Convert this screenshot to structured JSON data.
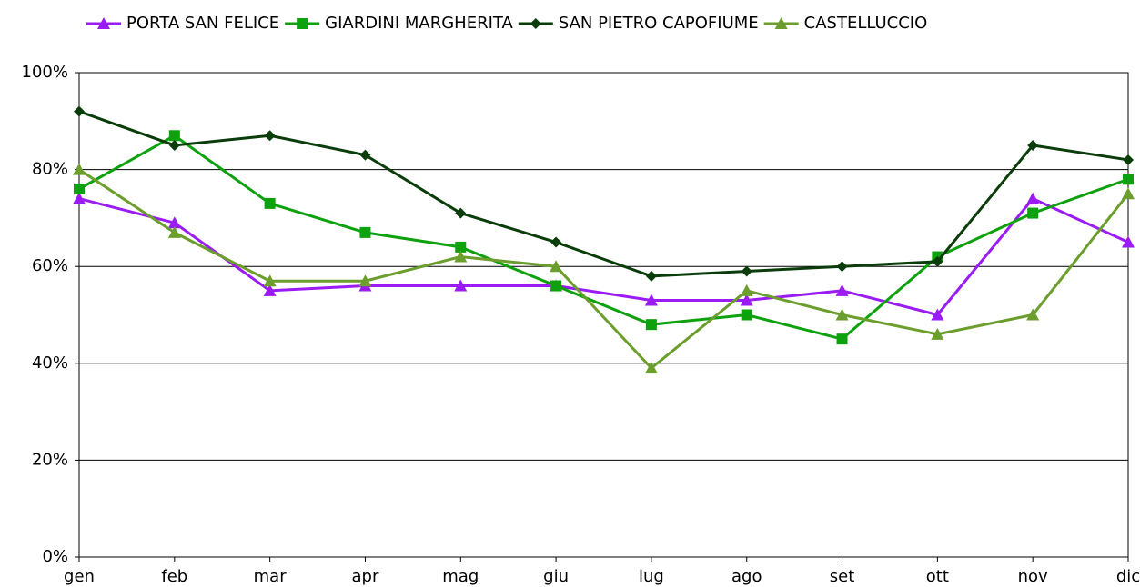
{
  "chart_data": {
    "type": "line",
    "categories": [
      "gen",
      "feb",
      "mar",
      "apr",
      "mag",
      "giu",
      "lug",
      "ago",
      "set",
      "ott",
      "nov",
      "dic"
    ],
    "series": [
      {
        "name": "PORTA SAN FELICE",
        "color": "#9b1bf5",
        "marker": "triangle",
        "values": [
          74,
          69,
          55,
          56,
          56,
          56,
          53,
          53,
          55,
          50,
          74,
          65
        ]
      },
      {
        "name": "GIARDINI MARGHERITA",
        "color": "#0da10d",
        "marker": "square",
        "values": [
          76,
          87,
          73,
          67,
          64,
          56,
          48,
          50,
          45,
          62,
          71,
          78
        ]
      },
      {
        "name": "SAN PIETRO CAPOFIUME",
        "color": "#0b3d0b",
        "marker": "diamond",
        "values": [
          92,
          85,
          87,
          83,
          71,
          65,
          58,
          59,
          60,
          61,
          85,
          82
        ]
      },
      {
        "name": "CASTELLUCCIO",
        "color": "#6b9e2c",
        "marker": "triangle",
        "values": [
          80,
          67,
          57,
          57,
          62,
          60,
          39,
          55,
          50,
          46,
          50,
          75
        ]
      }
    ],
    "ylim": [
      0,
      100
    ],
    "yticks": [
      {
        "value": 0,
        "label": "0%"
      },
      {
        "value": 20,
        "label": "20%"
      },
      {
        "value": 40,
        "label": "40%"
      },
      {
        "value": 60,
        "label": "60%"
      },
      {
        "value": 80,
        "label": "80%"
      },
      {
        "value": 100,
        "label": "100%"
      }
    ],
    "grid": true,
    "legend": "top"
  }
}
